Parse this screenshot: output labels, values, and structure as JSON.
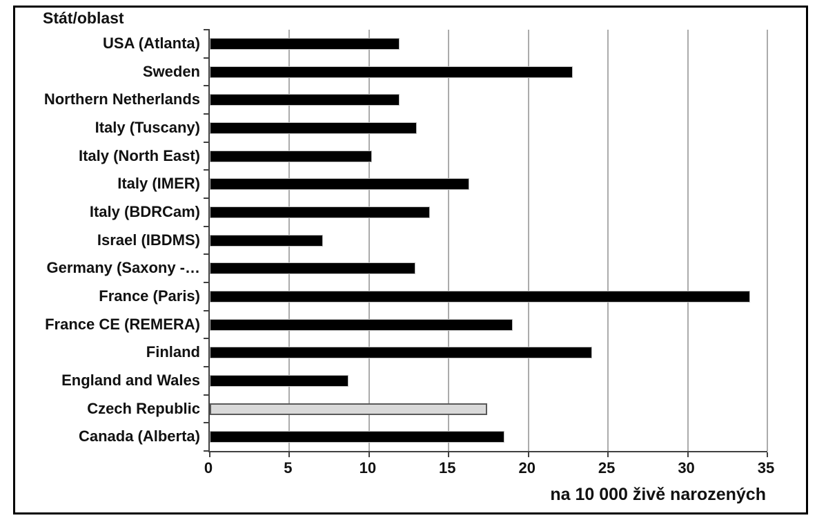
{
  "chart_data": {
    "type": "bar",
    "orientation": "horizontal",
    "title": "Stát/oblast",
    "xlabel": "na 10 000 živě narozených",
    "xlim": [
      0,
      35
    ],
    "xticks": [
      0,
      5,
      10,
      15,
      20,
      25,
      30,
      35
    ],
    "grid": true,
    "legend": "none",
    "categories": [
      "USA (Atlanta)",
      "Sweden",
      "Northern Netherlands",
      "Italy (Tuscany)",
      "Italy (North East)",
      "Italy (IMER)",
      "Italy (BDRCam)",
      "Israel (IBDMS)",
      "Germany (Saxony -…",
      "France (Paris)",
      "France CE (REMERA)",
      "Finland",
      "England and Wales",
      "Czech Republic",
      "Canada (Alberta)"
    ],
    "values": [
      11.9,
      22.8,
      11.9,
      13.0,
      10.2,
      16.3,
      13.8,
      7.1,
      12.9,
      33.9,
      19.0,
      24.0,
      8.7,
      17.4,
      18.5
    ],
    "bar_color": "#000000",
    "highlight": {
      "category": "Czech Republic",
      "index": 13,
      "fill": "#d9d9d9",
      "border": "#595959"
    },
    "colors": {
      "gridline": "#ababab",
      "axis": "#404040",
      "text": "#111111",
      "figure_border": "#000000"
    }
  }
}
